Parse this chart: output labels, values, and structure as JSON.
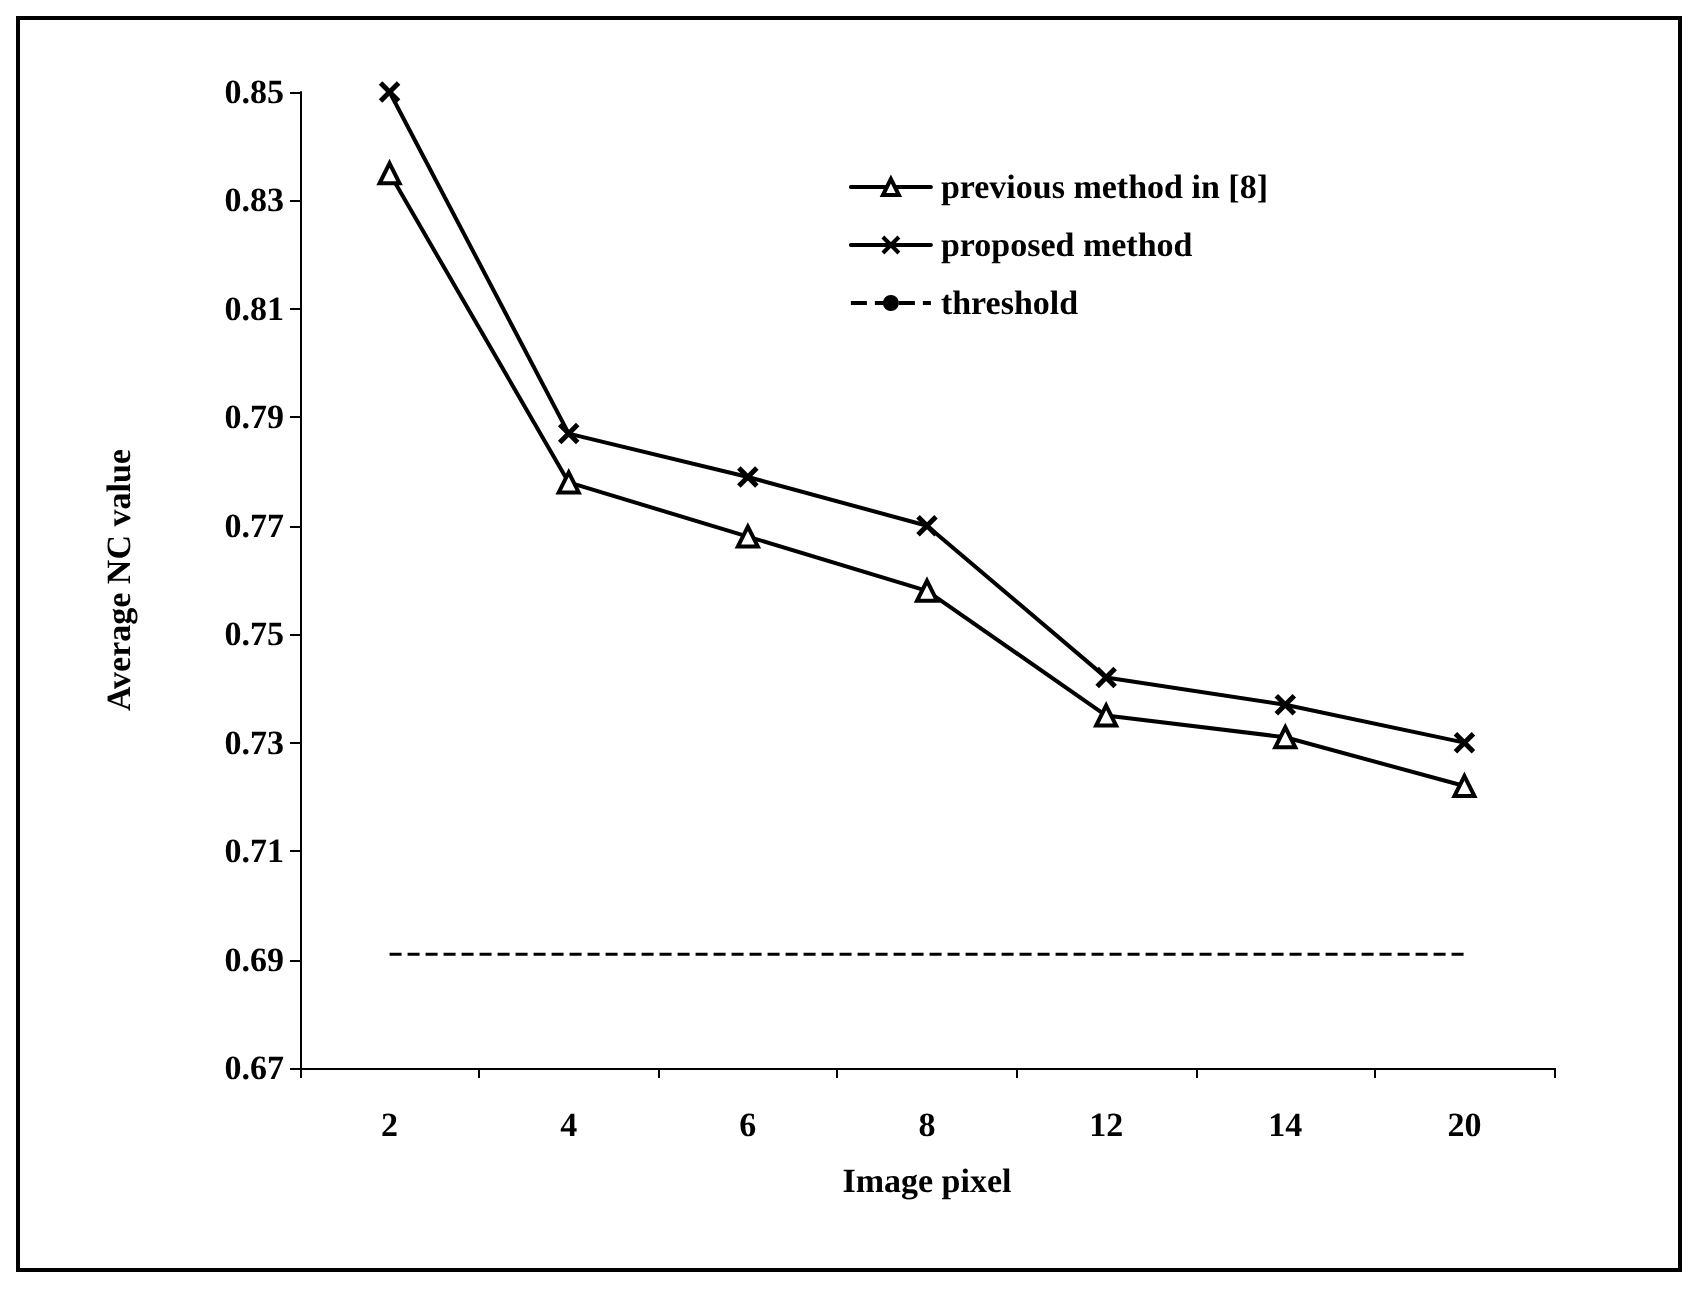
{
  "chart_data": {
    "type": "line",
    "xlabel": "Image pixel",
    "ylabel": "Average NC value",
    "categories": [
      "2",
      "4",
      "6",
      "8",
      "12",
      "14",
      "20"
    ],
    "series": [
      {
        "name": "previous method in [8]",
        "color": "#000000",
        "marker": "triangle",
        "values": [
          0.835,
          0.778,
          0.768,
          0.758,
          0.735,
          0.731,
          0.722
        ]
      },
      {
        "name": "proposed method",
        "color": "#000000",
        "marker": "cross",
        "values": [
          0.85,
          0.787,
          0.779,
          0.77,
          0.742,
          0.737,
          0.73
        ]
      }
    ],
    "ref_lines": [
      {
        "axis": "y",
        "value": 0.691,
        "label": "threshold",
        "color": "#000000",
        "line_style": "dashed"
      }
    ],
    "ylim": [
      0.67,
      0.85
    ],
    "yticks": [
      0.67,
      0.69,
      0.71,
      0.73,
      0.75,
      0.77,
      0.79,
      0.81,
      0.83,
      0.85
    ],
    "grid": false,
    "legend": "top right",
    "line_style": "solid"
  }
}
